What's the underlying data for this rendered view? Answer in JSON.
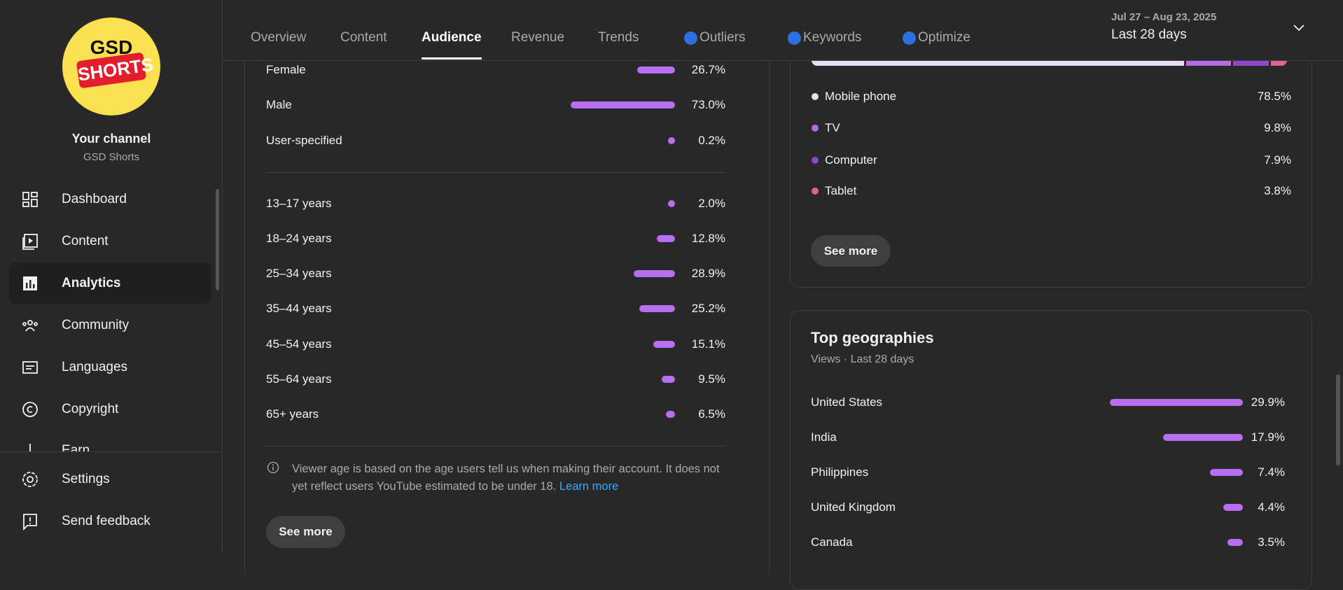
{
  "sidebar": {
    "logo_text": [
      "GSD",
      "SHORTS"
    ],
    "channel_title": "Your channel",
    "channel_name": "GSD Shorts",
    "nav": [
      "Dashboard",
      "Content",
      "Analytics",
      "Community",
      "Languages",
      "Copyright",
      "Earn"
    ],
    "footer": [
      "Settings",
      "Send feedback"
    ]
  },
  "tabs": [
    "Overview",
    "Content",
    "Audience",
    "Revenue",
    "Trends",
    "Outliers",
    "Keywords",
    "Optimize"
  ],
  "date_range": {
    "dates": "Jul 27 – Aug 23, 2025",
    "period": "Last 28 days"
  },
  "gender": [
    {
      "label": "Female",
      "value": 26.7,
      "value_label": "26.7%"
    },
    {
      "label": "Male",
      "value": 73.0,
      "value_label": "73.0%"
    },
    {
      "label": "User-specified",
      "value": 0.2,
      "value_label": "0.2%"
    }
  ],
  "age": [
    {
      "label": "13–17 years",
      "value": 2.0,
      "value_label": "2.0%"
    },
    {
      "label": "18–24 years",
      "value": 12.8,
      "value_label": "12.8%"
    },
    {
      "label": "25–34 years",
      "value": 28.9,
      "value_label": "28.9%"
    },
    {
      "label": "35–44 years",
      "value": 25.2,
      "value_label": "25.2%"
    },
    {
      "label": "45–54 years",
      "value": 15.1,
      "value_label": "15.1%"
    },
    {
      "label": "55–64 years",
      "value": 9.5,
      "value_label": "9.5%"
    },
    {
      "label": "65+ years",
      "value": 6.5,
      "value_label": "6.5%"
    }
  ],
  "age_note": {
    "text": "Viewer age is based on the age users tell us when making their account. It does not yet reflect users YouTube estimated to be under 18.",
    "link": "Learn more"
  },
  "audience_see_more": "See more",
  "devices": {
    "rows": [
      {
        "label": "Mobile phone",
        "value": 78.5,
        "value_label": "78.5%",
        "color": "#eadcf7"
      },
      {
        "label": "TV",
        "value": 9.8,
        "value_label": "9.8%",
        "color": "#b56ce8"
      },
      {
        "label": "Computer",
        "value": 7.9,
        "value_label": "7.9%",
        "color": "#9147cc"
      },
      {
        "label": "Tablet",
        "value": 3.8,
        "value_label": "3.8%",
        "color": "#e0609a"
      }
    ],
    "see_more": "See more"
  },
  "geographies": {
    "title": "Top geographies",
    "subtitle": "Views · Last 28 days",
    "rows": [
      {
        "label": "United States",
        "value": 29.9,
        "value_label": "29.9%"
      },
      {
        "label": "India",
        "value": 17.9,
        "value_label": "17.9%"
      },
      {
        "label": "Philippines",
        "value": 7.4,
        "value_label": "7.4%"
      },
      {
        "label": "United Kingdom",
        "value": 4.4,
        "value_label": "4.4%"
      },
      {
        "label": "Canada",
        "value": 3.5,
        "value_label": "3.5%"
      }
    ]
  }
}
